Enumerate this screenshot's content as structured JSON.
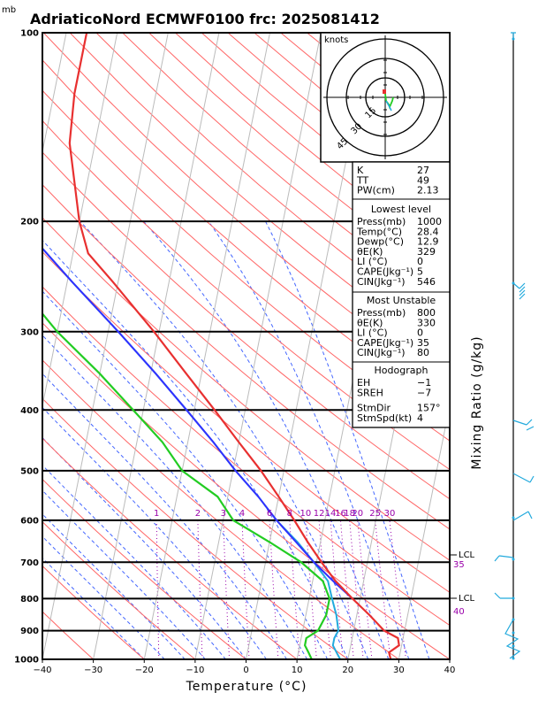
{
  "header": {
    "unit_mb": "mb",
    "title": "AdriaticoNord ECMWF0100  frc: 2025081412"
  },
  "colors": {
    "temperature": "#e83030",
    "dewpoint": "#22cc22",
    "parcel": "#3030ff",
    "wetbulb": "#22aadd",
    "isotherm": "#bbbbbb",
    "dry_adiabat": "#ff6666",
    "moist_adiabat": "#4466ff",
    "mixing_ratio": "#9900aa",
    "wind": "#22aadd"
  },
  "hodograph": {
    "units": "knots",
    "ring_labels": [
      "15",
      "30",
      "45"
    ]
  },
  "indices": {
    "top": [
      {
        "label": "K",
        "value": "27"
      },
      {
        "label": "TT",
        "value": "49"
      },
      {
        "label": "PW(cm)",
        "value": "2.13"
      }
    ],
    "lowest_level": {
      "heading": "Lowest level",
      "rows": [
        {
          "label": "Press(mb)",
          "value": "1000"
        },
        {
          "label": "Temp(°C)",
          "value": "28.4"
        },
        {
          "label": "Dewp(°C)",
          "value": "12.9"
        },
        {
          "label": "θE(K)",
          "value": "329"
        },
        {
          "label": "LI (°C)",
          "value": "0"
        },
        {
          "label": "CAPE(Jkg⁻¹)",
          "value": "5"
        },
        {
          "label": "CIN(Jkg⁻¹)",
          "value": "546"
        }
      ]
    },
    "most_unstable": {
      "heading": "Most Unstable",
      "rows": [
        {
          "label": "Press(mb)",
          "value": "800"
        },
        {
          "label": "θE(K)",
          "value": "330"
        },
        {
          "label": "LI (°C)",
          "value": "0"
        },
        {
          "label": "CAPE(Jkg⁻¹)",
          "value": "35"
        },
        {
          "label": "CIN(Jkg⁻¹)",
          "value": "80"
        }
      ]
    },
    "hodograph_block": {
      "heading": "Hodograph",
      "rows": [
        {
          "label": "EH",
          "value": "−1"
        },
        {
          "label": "SREH",
          "value": "−7"
        },
        {
          "label": "StmDir",
          "value": "157°"
        },
        {
          "label": "StmSpd(kt)",
          "value": "4"
        }
      ]
    }
  },
  "side_labels": {
    "lcl_upper": "LCL",
    "lcl_lower": "LCL",
    "mr_35": "35",
    "mr_40": "40",
    "mixing_ratio_axis": "Mixing Ratio  (g/kg)"
  },
  "chart_data": {
    "type": "line",
    "title": "AdriaticoNord ECMWF0100  frc: 2025081412",
    "xlabel": "Temperature (°C)",
    "ylabel": "mb",
    "xlim": [
      -40,
      40
    ],
    "ylim": [
      1000,
      100
    ],
    "y_scale": "log",
    "x_ticks": [
      "−40",
      "−30",
      "−20",
      "−10",
      "0",
      "10",
      "20",
      "30",
      "40"
    ],
    "pressure_levels": [
      1000,
      900,
      800,
      700,
      600,
      500,
      400,
      300,
      200,
      100
    ],
    "mixing_ratio_labels": [
      "1",
      "2",
      "3",
      "4",
      "6",
      "8",
      "10",
      "12",
      "14",
      "16",
      "18",
      "20",
      "25",
      "30"
    ],
    "mixing_ratio_values": [
      1,
      2,
      3,
      4,
      6,
      8,
      10,
      12,
      14,
      16,
      18,
      20,
      25,
      30
    ],
    "series": [
      {
        "name": "temperature",
        "points": [
          [
            1000,
            28.4
          ],
          [
            975,
            27.8
          ],
          [
            950,
            29.5
          ],
          [
            925,
            29
          ],
          [
            900,
            26
          ],
          [
            850,
            22.5
          ],
          [
            800,
            18.5
          ],
          [
            750,
            14.5
          ],
          [
            700,
            11
          ],
          [
            650,
            7.5
          ],
          [
            600,
            4
          ],
          [
            550,
            0
          ],
          [
            500,
            -4.5
          ],
          [
            450,
            -10
          ],
          [
            400,
            -16
          ],
          [
            350,
            -23
          ],
          [
            300,
            -31
          ],
          [
            250,
            -41
          ],
          [
            225,
            -47
          ],
          [
            200,
            -50
          ],
          [
            150,
            -55
          ],
          [
            125,
            -56
          ],
          [
            100,
            -56
          ]
        ]
      },
      {
        "name": "dewpoint",
        "points": [
          [
            1000,
            12.9
          ],
          [
            975,
            12
          ],
          [
            950,
            11
          ],
          [
            925,
            11
          ],
          [
            900,
            13
          ],
          [
            850,
            14
          ],
          [
            800,
            14
          ],
          [
            750,
            12
          ],
          [
            700,
            7
          ],
          [
            650,
            0
          ],
          [
            600,
            -8
          ],
          [
            550,
            -12
          ],
          [
            500,
            -20
          ],
          [
            450,
            -25
          ],
          [
            400,
            -32
          ],
          [
            350,
            -40
          ],
          [
            300,
            -50
          ],
          [
            250,
            -60
          ],
          [
            200,
            -70
          ],
          [
            150,
            -80
          ],
          [
            125,
            -85
          ],
          [
            110,
            -88
          ]
        ]
      },
      {
        "name": "parcel",
        "points": [
          [
            800,
            18.5
          ],
          [
            750,
            14
          ],
          [
            700,
            9.5
          ],
          [
            650,
            5.2
          ],
          [
            600,
            0.5
          ],
          [
            550,
            -4
          ],
          [
            500,
            -9.5
          ],
          [
            450,
            -15
          ],
          [
            400,
            -21.5
          ],
          [
            350,
            -29
          ],
          [
            300,
            -38
          ],
          [
            250,
            -49
          ],
          [
            200,
            -62
          ],
          [
            150,
            -78
          ],
          [
            110,
            -90
          ]
        ]
      },
      {
        "name": "wetbulb",
        "points": [
          [
            1000,
            18.5
          ],
          [
            975,
            17.5
          ],
          [
            950,
            16.5
          ],
          [
            925,
            16.5
          ],
          [
            900,
            17
          ],
          [
            850,
            16
          ],
          [
            800,
            14.5
          ],
          [
            750,
            13
          ],
          [
            700,
            9.5
          ],
          [
            650,
            5.5
          ],
          [
            600,
            0.5
          ],
          [
            550,
            -4
          ],
          [
            500,
            -9.5
          ],
          [
            450,
            -15
          ],
          [
            400,
            -21.5
          ],
          [
            350,
            -29
          ],
          [
            300,
            -38
          ],
          [
            250,
            -49
          ],
          [
            200,
            -62
          ],
          [
            150,
            -78
          ],
          [
            110,
            -90
          ]
        ]
      }
    ]
  }
}
